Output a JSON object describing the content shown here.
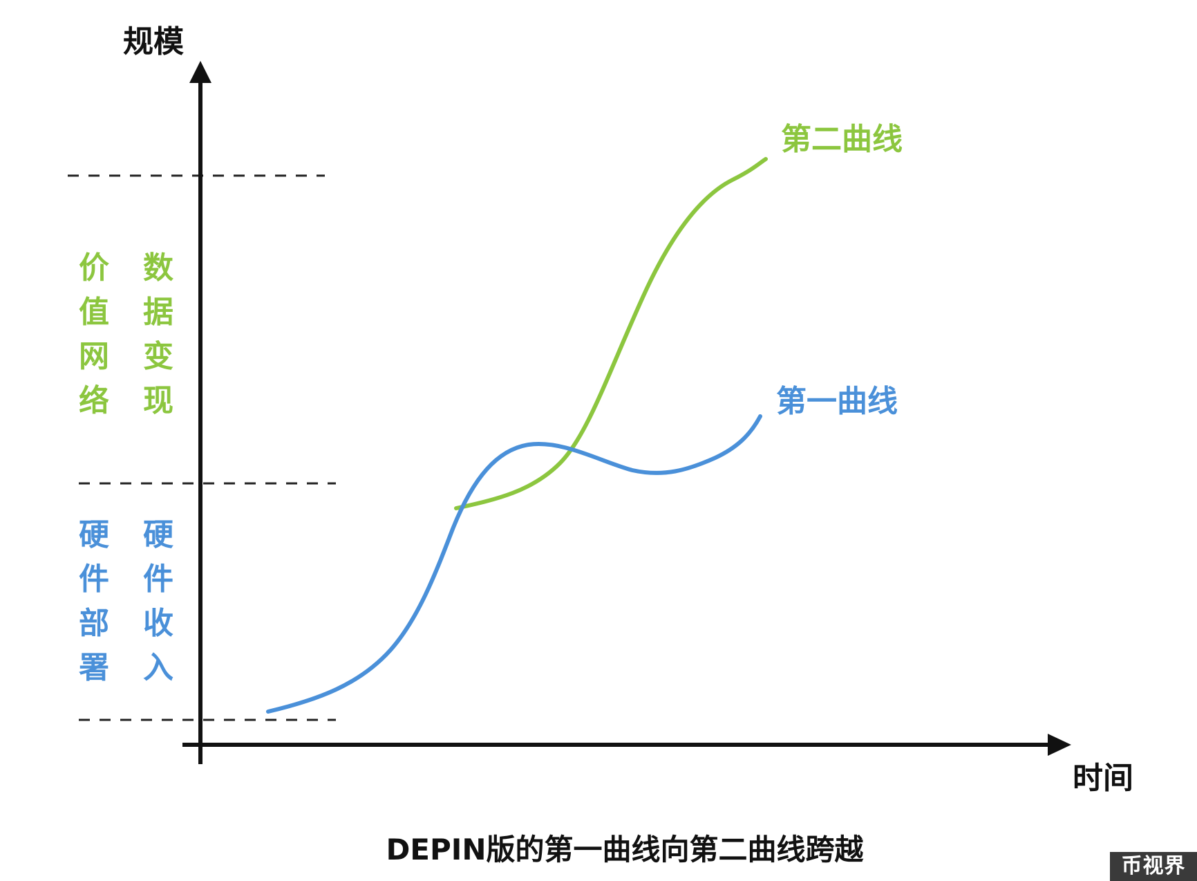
{
  "axes": {
    "y_label": "规模",
    "x_label": "时间"
  },
  "curves": {
    "first": {
      "label": "第一曲线",
      "color": "#4a90d9"
    },
    "second": {
      "label": "第二曲线",
      "color": "#8cc63f"
    }
  },
  "stages": {
    "upper": {
      "color": "#8cc63f",
      "col1": [
        "价",
        "值",
        "网",
        "络"
      ],
      "col2": [
        "数",
        "据",
        "变",
        "现"
      ]
    },
    "lower": {
      "color": "#4a90d9",
      "col1": [
        "硬",
        "件",
        "部",
        "署"
      ],
      "col2": [
        "硬",
        "件",
        "收",
        "入"
      ]
    }
  },
  "caption": "DEPIN版的第一曲线向第二曲线跨越",
  "watermark": "币视界",
  "colors": {
    "axis": "#111111",
    "dashed": "#222222"
  }
}
